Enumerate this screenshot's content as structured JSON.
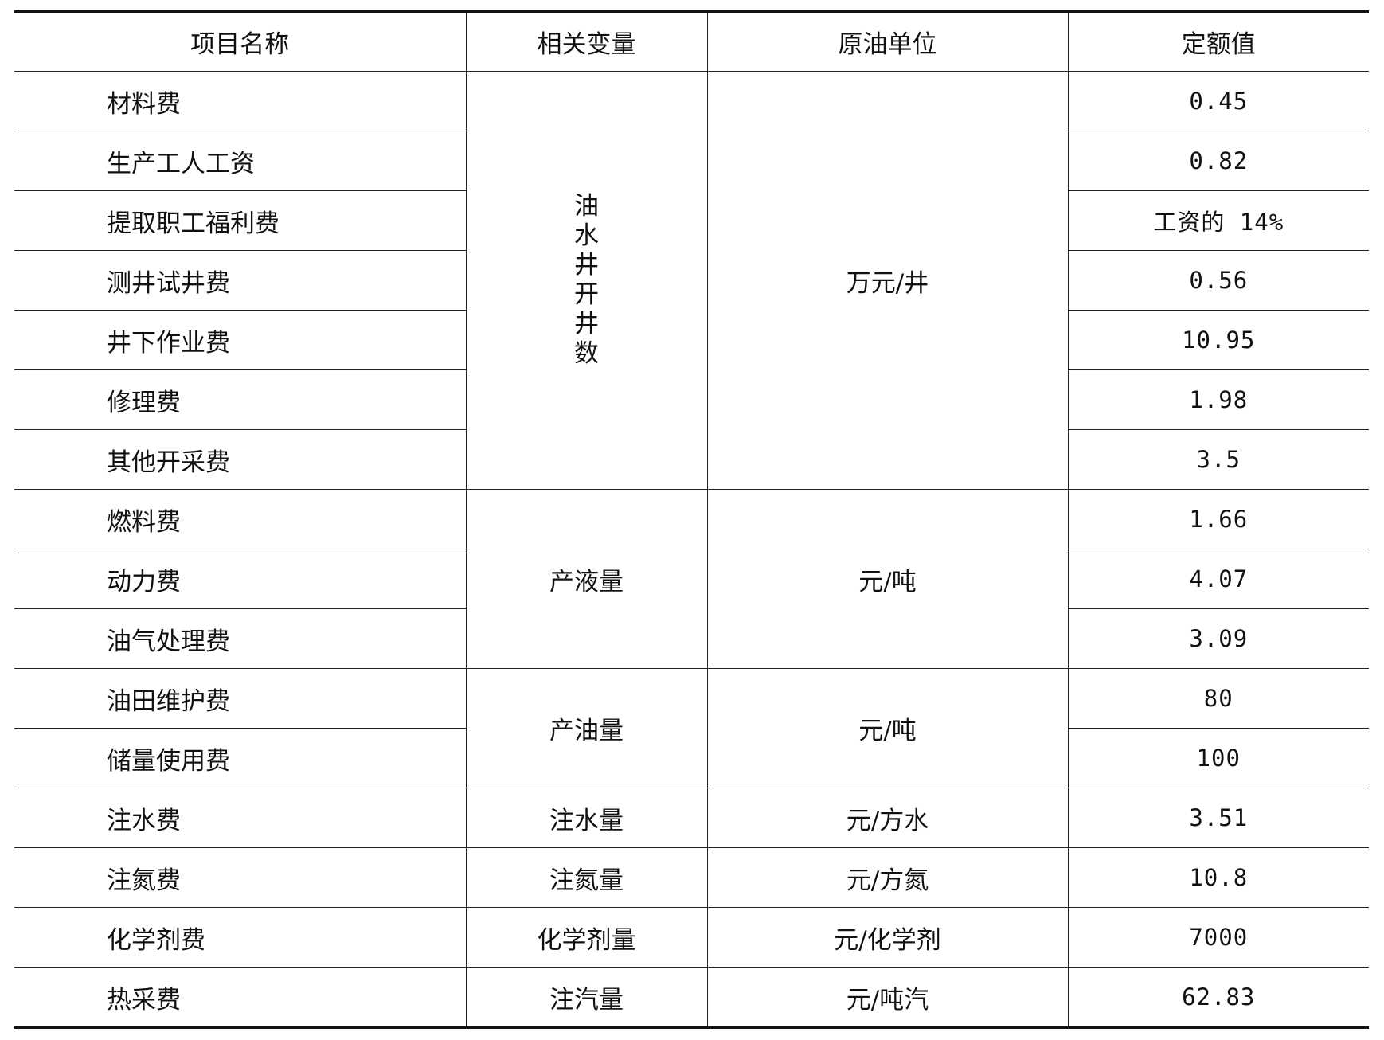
{
  "headers": [
    "项目名称",
    "相关变量",
    "原油单位",
    "定额值"
  ],
  "groups": [
    {
      "variable": "油水井开井数",
      "unit": "万元/井"
    },
    {
      "variable": "产液量",
      "unit": "元/吨"
    },
    {
      "variable": "产油量",
      "unit": "元/吨"
    }
  ],
  "rows": [
    {
      "name": "材料费",
      "value": "0.45"
    },
    {
      "name": "生产工人工资",
      "value": "0.82"
    },
    {
      "name": "提取职工福利费",
      "value": "工资的 14%"
    },
    {
      "name": "测井试井费",
      "value": "0.56"
    },
    {
      "name": "井下作业费",
      "value": "10.95"
    },
    {
      "name": "修理费",
      "value": "1.98"
    },
    {
      "name": "其他开采费",
      "value": "3.5"
    },
    {
      "name": "燃料费",
      "value": "1.66"
    },
    {
      "name": "动力费",
      "value": "4.07"
    },
    {
      "name": "油气处理费",
      "value": "3.09"
    },
    {
      "name": "油田维护费",
      "value": "80"
    },
    {
      "name": "储量使用费",
      "value": "100"
    },
    {
      "name": "注水费",
      "variable": "注水量",
      "unit": "元/方水",
      "value": "3.51"
    },
    {
      "name": "注氮费",
      "variable": "注氮量",
      "unit": "元/方氮",
      "value": "10.8"
    },
    {
      "name": "化学剂费",
      "variable": "化学剂量",
      "unit": "元/化学剂",
      "value": "7000"
    },
    {
      "name": "热采费",
      "variable": "注汽量",
      "unit": "元/吨汽",
      "value": "62.83"
    }
  ]
}
